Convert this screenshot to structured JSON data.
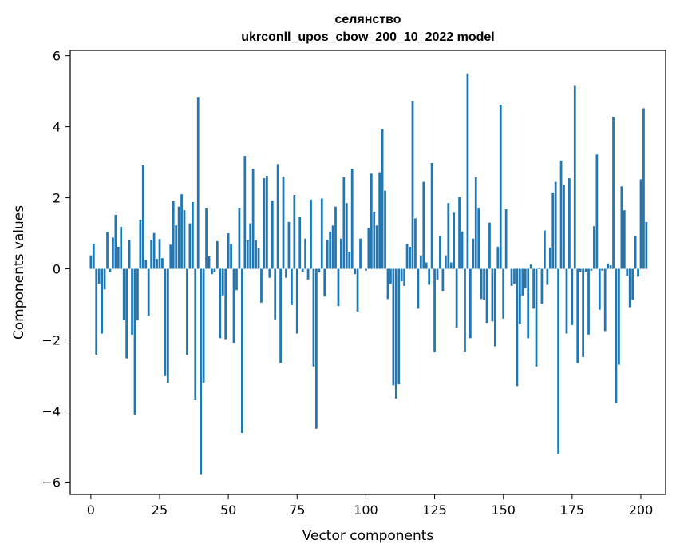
{
  "chart_data": {
    "type": "bar",
    "title": "селянство",
    "subtitle": "ukrconll_upos_cbow_200_10_2022 model",
    "xlabel": "Vector components",
    "ylabel": "Components values",
    "xlim": [
      -7.5,
      209
    ],
    "ylim": [
      -6.35,
      6.15
    ],
    "x_ticks": [
      0,
      25,
      50,
      75,
      100,
      125,
      150,
      175,
      200
    ],
    "x_tick_labels": [
      "0",
      "25",
      "50",
      "75",
      "100",
      "125",
      "150",
      "175",
      "200"
    ],
    "y_ticks": [
      -6,
      -4,
      -2,
      0,
      2,
      4,
      6
    ],
    "y_tick_labels": [
      "−6",
      "−4",
      "−2",
      "0",
      "2",
      "4",
      "6"
    ],
    "bar_color": "#1f77b4",
    "values": [
      0.38,
      0.71,
      -2.42,
      -0.42,
      -1.82,
      -0.58,
      1.04,
      -0.1,
      0.88,
      1.52,
      0.62,
      1.18,
      -1.45,
      -2.52,
      0.82,
      -1.85,
      -4.1,
      -1.45,
      1.38,
      2.92,
      0.25,
      -1.32,
      0.82,
      1.01,
      0.28,
      0.84,
      0.3,
      -3.02,
      -3.22,
      0.68,
      1.9,
      1.22,
      1.75,
      2.1,
      1.65,
      -2.42,
      1.28,
      1.88,
      -3.7,
      4.82,
      -5.78,
      -3.2,
      1.72,
      0.35,
      -0.15,
      -0.08,
      0.78,
      -1.95,
      -0.75,
      -1.98,
      1.0,
      0.7,
      -2.08,
      -0.6,
      1.72,
      -4.62,
      3.18,
      0.8,
      1.28,
      2.82,
      0.8,
      0.58,
      -0.95,
      2.55,
      2.62,
      -0.25,
      1.92,
      -1.42,
      2.95,
      -2.65,
      2.6,
      -0.25,
      1.32,
      -1.02,
      2.08,
      -1.82,
      1.45,
      -0.08,
      0.85,
      -0.3,
      1.95,
      -2.75,
      -4.5,
      -0.1,
      1.98,
      -0.78,
      0.82,
      1.05,
      1.22,
      1.75,
      -1.05,
      0.85,
      2.58,
      1.85,
      0.48,
      2.82,
      -0.15,
      -1.2,
      0.85,
      0.0,
      -0.05,
      1.15,
      2.68,
      1.6,
      1.22,
      2.72,
      3.93,
      2.2,
      -0.85,
      -0.42,
      -3.28,
      -3.65,
      -3.25,
      -0.35,
      -0.48,
      0.7,
      0.62,
      4.72,
      1.42,
      -1.12,
      0.38,
      2.45,
      0.18,
      -0.45,
      2.98,
      -2.35,
      -0.3,
      0.92,
      -0.62,
      0.38,
      1.85,
      0.18,
      1.58,
      -1.65,
      2.02,
      1.05,
      -2.35,
      5.48,
      -1.95,
      0.85,
      2.58,
      1.72,
      -0.85,
      -0.88,
      -1.52,
      1.3,
      -1.48,
      -2.18,
      0.62,
      4.62,
      -1.4,
      1.68,
      0.0,
      -0.48,
      -0.42,
      -3.3,
      -1.55,
      -0.75,
      -0.55,
      -1.95,
      0.12,
      -1.12,
      -2.75,
      0.02,
      -0.98,
      1.08,
      -0.45,
      0.6,
      2.15,
      2.45,
      -5.2,
      3.05,
      2.35,
      -1.82,
      2.55,
      -1.58,
      5.15,
      -2.65,
      -0.08,
      -2.48,
      -0.08,
      -1.85,
      -0.05,
      1.2,
      3.22,
      -1.15,
      -0.05,
      -1.75,
      0.15,
      0.1,
      4.28,
      -3.78,
      -2.7,
      2.32,
      1.65,
      -0.2,
      -1.08,
      -0.88,
      0.92,
      -0.22,
      2.52,
      4.52,
      1.32
    ]
  }
}
